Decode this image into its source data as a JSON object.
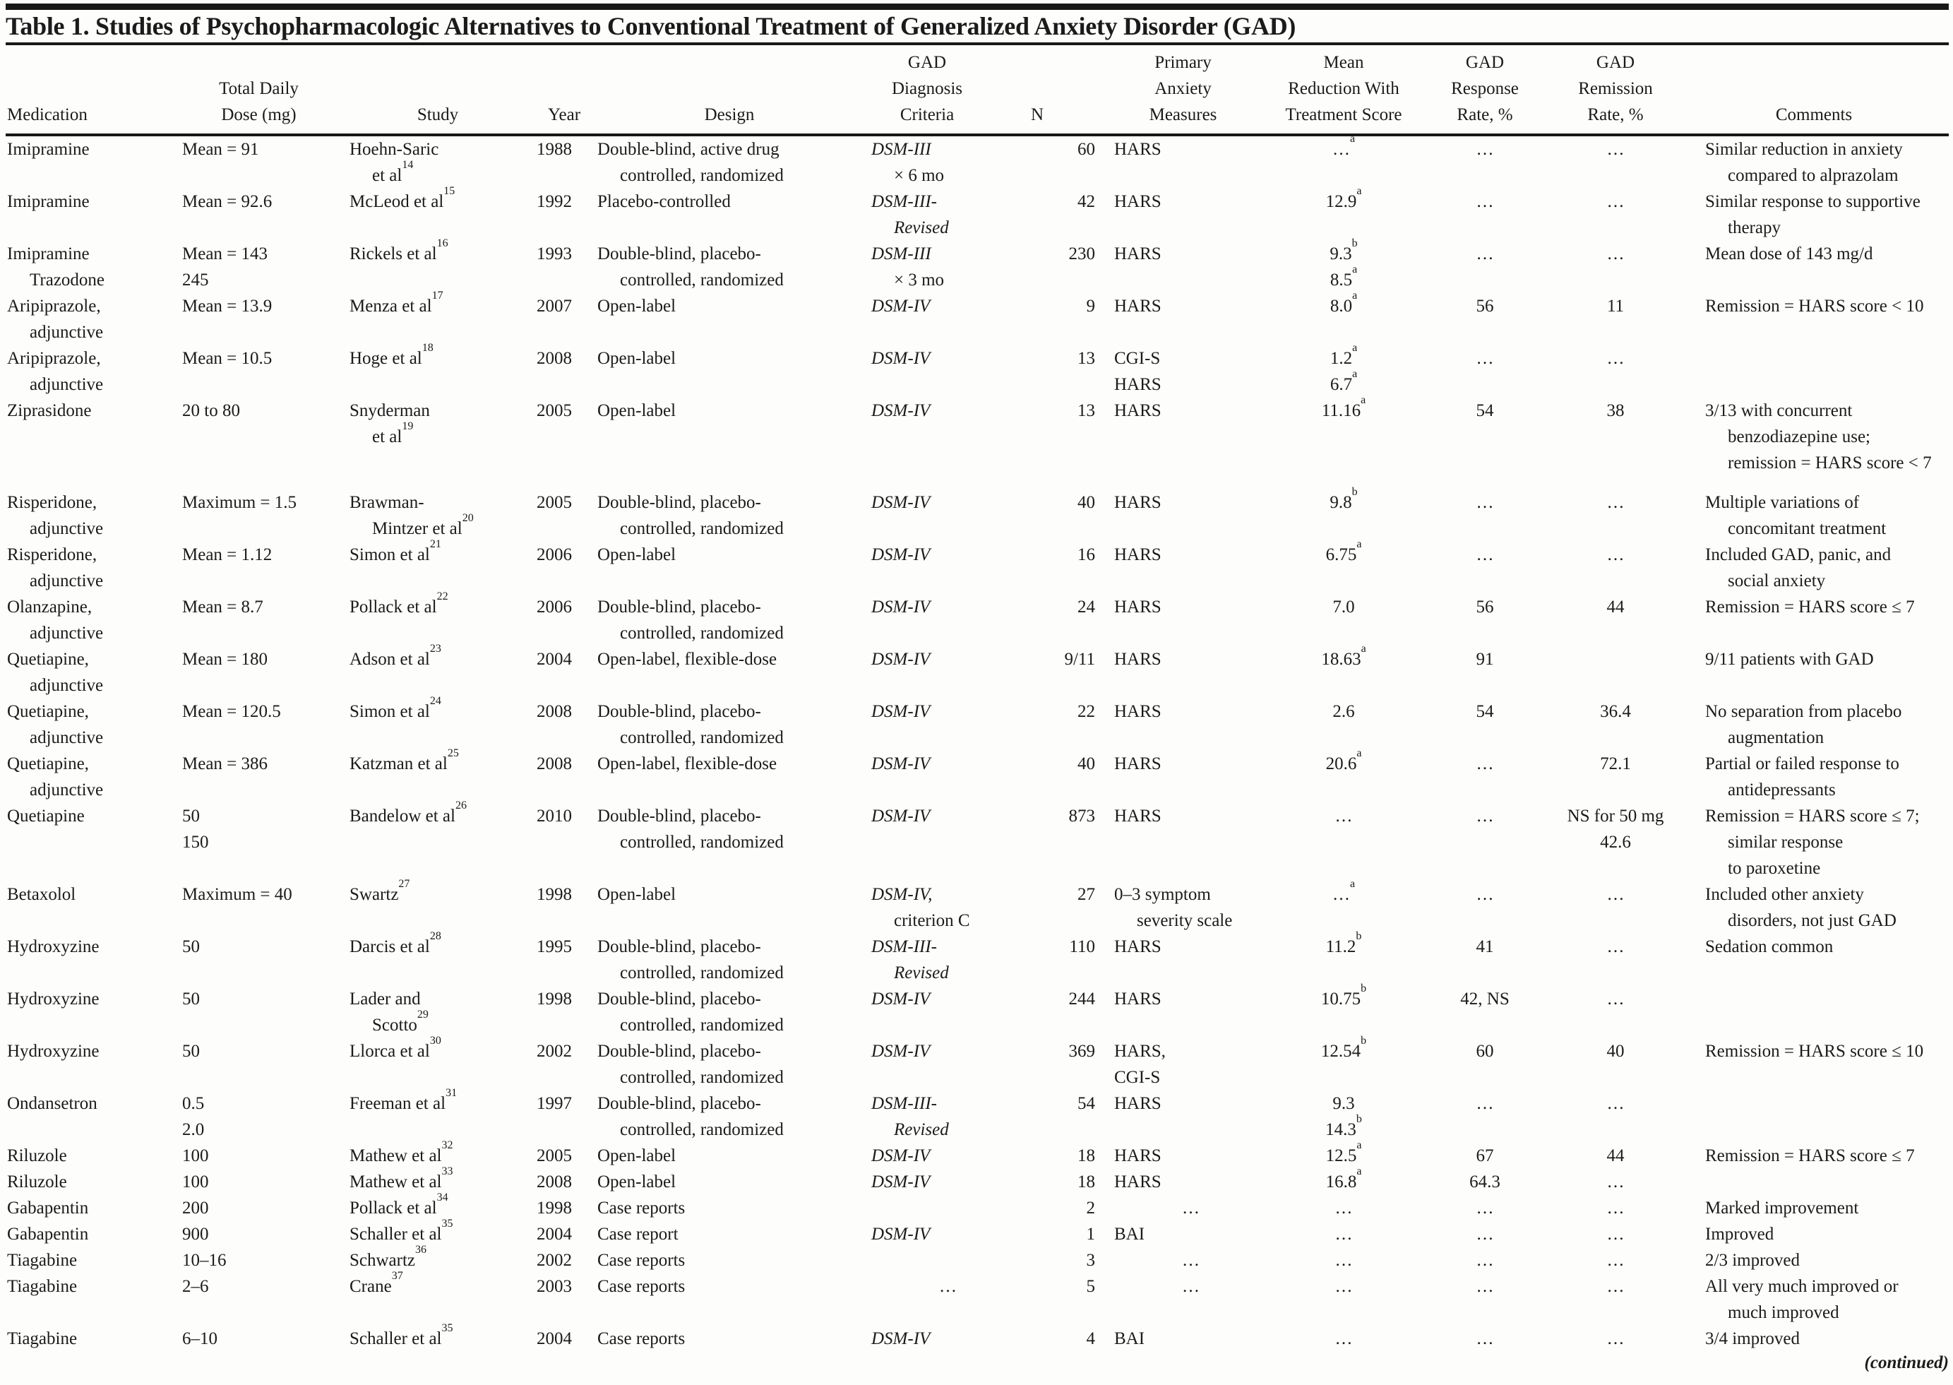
{
  "title": "Table 1. Studies of Psychopharmacologic Alternatives to Conventional Treatment of Generalized Anxiety Disorder (GAD)",
  "continued": "(continued)",
  "columns": [
    {
      "key": "medication",
      "label": [
        "Medication"
      ]
    },
    {
      "key": "dose",
      "label": [
        "Total Daily",
        "Dose (mg)"
      ]
    },
    {
      "key": "study",
      "label": [
        "Study"
      ]
    },
    {
      "key": "year",
      "label": [
        "Year"
      ]
    },
    {
      "key": "design",
      "label": [
        "Design"
      ]
    },
    {
      "key": "criteria",
      "label": [
        "GAD",
        "Diagnosis",
        "Criteria"
      ]
    },
    {
      "key": "n",
      "label": [
        "N"
      ]
    },
    {
      "key": "measures",
      "label": [
        "Primary",
        "Anxiety",
        "Measures"
      ]
    },
    {
      "key": "reduction",
      "label": [
        "Mean",
        "Reduction With",
        "Treatment Score"
      ]
    },
    {
      "key": "response",
      "label": [
        "GAD",
        "Response",
        "Rate, %"
      ]
    },
    {
      "key": "remission",
      "label": [
        "GAD",
        "Remission",
        "Rate, %"
      ]
    },
    {
      "key": "comments",
      "label": [
        "Comments"
      ]
    }
  ],
  "rows": [
    {
      "medication": [
        "Imipramine"
      ],
      "dose": [
        "Mean = 91"
      ],
      "study": [
        "Hoehn-Saric",
        ">et al^14"
      ],
      "year": [
        "1988"
      ],
      "design": [
        "Double-blind, active drug",
        ">controlled, randomized"
      ],
      "criteria": [
        "DSM-III",
        ">~× 6 mo"
      ],
      "n": [
        "60"
      ],
      "measures": [
        "HARS"
      ],
      "reduction": [
        "…^a"
      ],
      "response": [
        "…"
      ],
      "remission": [
        "…"
      ],
      "comments": [
        "Similar reduction in anxiety",
        ">compared to alprazolam"
      ]
    },
    {
      "medication": [
        "Imipramine"
      ],
      "dose": [
        "Mean = 92.6"
      ],
      "study": [
        "McLeod et al^15"
      ],
      "year": [
        "1992"
      ],
      "design": [
        "Placebo-controlled"
      ],
      "criteria": [
        "DSM-III-",
        ">Revised"
      ],
      "n": [
        "42"
      ],
      "measures": [
        "HARS"
      ],
      "reduction": [
        "12.9^a"
      ],
      "response": [
        "…"
      ],
      "remission": [
        "…"
      ],
      "comments": [
        "Similar response to supportive",
        ">therapy"
      ]
    },
    {
      "medication": [
        "Imipramine",
        ">Trazodone"
      ],
      "dose": [
        "Mean = 143",
        "245"
      ],
      "study": [
        "Rickels et al^16"
      ],
      "year": [
        "1993"
      ],
      "design": [
        "Double-blind, placebo-",
        ">controlled, randomized"
      ],
      "criteria": [
        "DSM-III",
        ">~× 3 mo"
      ],
      "n": [
        "230"
      ],
      "measures": [
        "HARS"
      ],
      "reduction": [
        "9.3^b",
        "8.5^a"
      ],
      "response": [
        "…"
      ],
      "remission": [
        "…"
      ],
      "comments": [
        "Mean dose of 143 mg/d"
      ]
    },
    {
      "medication": [
        "Aripiprazole,",
        ">adjunctive"
      ],
      "dose": [
        "Mean = 13.9"
      ],
      "study": [
        "Menza et al^17"
      ],
      "year": [
        "2007"
      ],
      "design": [
        "Open-label"
      ],
      "criteria": [
        "DSM-IV"
      ],
      "n": [
        "9"
      ],
      "measures": [
        "HARS"
      ],
      "reduction": [
        "8.0^a"
      ],
      "response": [
        "56"
      ],
      "remission": [
        "11"
      ],
      "comments": [
        "Remission = HARS score < 10"
      ]
    },
    {
      "medication": [
        "Aripiprazole,",
        ">adjunctive"
      ],
      "dose": [
        "Mean = 10.5"
      ],
      "study": [
        "Hoge et al^18"
      ],
      "year": [
        "2008"
      ],
      "design": [
        "Open-label"
      ],
      "criteria": [
        "DSM-IV"
      ],
      "n": [
        "13"
      ],
      "measures": [
        "CGI-S",
        "HARS"
      ],
      "reduction": [
        "1.2^a",
        "6.7^a"
      ],
      "response": [
        "…"
      ],
      "remission": [
        "…"
      ],
      "comments": []
    },
    {
      "medication": [
        "Ziprasidone"
      ],
      "dose": [
        "20 to 80"
      ],
      "study": [
        "Snyderman",
        ">et al^19"
      ],
      "year": [
        "2005"
      ],
      "design": [
        "Open-label"
      ],
      "criteria": [
        "DSM-IV"
      ],
      "n": [
        "13"
      ],
      "measures": [
        "HARS"
      ],
      "reduction": [
        "11.16^a"
      ],
      "response": [
        "54"
      ],
      "remission": [
        "38"
      ],
      "comments": [
        "3/13 with concurrent",
        ">benzodiazepine use;",
        ">remission = HARS score < 7"
      ],
      "gap_after": true
    },
    {
      "medication": [
        "Risperidone,",
        ">adjunctive"
      ],
      "dose": [
        "Maximum = 1.5"
      ],
      "study": [
        "Brawman-",
        ">Mintzer et al^20"
      ],
      "year": [
        "2005"
      ],
      "design": [
        "Double-blind, placebo-",
        ">controlled, randomized"
      ],
      "criteria": [
        "DSM-IV"
      ],
      "n": [
        "40"
      ],
      "measures": [
        "HARS"
      ],
      "reduction": [
        "9.8^b"
      ],
      "response": [
        "…"
      ],
      "remission": [
        "…"
      ],
      "comments": [
        "Multiple variations of",
        ">concomitant treatment"
      ]
    },
    {
      "medication": [
        "Risperidone,",
        ">adjunctive"
      ],
      "dose": [
        "Mean = 1.12"
      ],
      "study": [
        "Simon et al^21"
      ],
      "year": [
        "2006"
      ],
      "design": [
        "Open-label"
      ],
      "criteria": [
        "DSM-IV"
      ],
      "n": [
        "16"
      ],
      "measures": [
        "HARS"
      ],
      "reduction": [
        "6.75^a"
      ],
      "response": [
        "…"
      ],
      "remission": [
        "…"
      ],
      "comments": [
        "Included GAD, panic, and",
        ">social anxiety"
      ]
    },
    {
      "medication": [
        "Olanzapine,",
        ">adjunctive"
      ],
      "dose": [
        "Mean = 8.7"
      ],
      "study": [
        "Pollack et al^22"
      ],
      "year": [
        "2006"
      ],
      "design": [
        "Double-blind, placebo-",
        ">controlled, randomized"
      ],
      "criteria": [
        "DSM-IV"
      ],
      "n": [
        "24"
      ],
      "measures": [
        "HARS"
      ],
      "reduction": [
        "7.0"
      ],
      "response": [
        "56"
      ],
      "remission": [
        "44"
      ],
      "comments": [
        "Remission = HARS score ≤ 7"
      ]
    },
    {
      "medication": [
        "Quetiapine,",
        ">adjunctive"
      ],
      "dose": [
        "Mean = 180"
      ],
      "study": [
        "Adson et al^23"
      ],
      "year": [
        "2004"
      ],
      "design": [
        "Open-label, flexible-dose"
      ],
      "criteria": [
        "DSM-IV"
      ],
      "n": [
        "9/11"
      ],
      "measures": [
        "HARS"
      ],
      "reduction": [
        "18.63^a"
      ],
      "response": [
        "91"
      ],
      "remission": [],
      "comments": [
        "9/11 patients with GAD"
      ]
    },
    {
      "medication": [
        "Quetiapine,",
        ">adjunctive"
      ],
      "dose": [
        "Mean = 120.5"
      ],
      "study": [
        "Simon et al^24"
      ],
      "year": [
        "2008"
      ],
      "design": [
        "Double-blind, placebo-",
        ">controlled, randomized"
      ],
      "criteria": [
        "DSM-IV"
      ],
      "n": [
        "22"
      ],
      "measures": [
        "HARS"
      ],
      "reduction": [
        "2.6"
      ],
      "response": [
        "54"
      ],
      "remission": [
        "36.4"
      ],
      "comments": [
        "No separation from placebo",
        ">augmentation"
      ]
    },
    {
      "medication": [
        "Quetiapine,",
        ">adjunctive"
      ],
      "dose": [
        "Mean = 386"
      ],
      "study": [
        "Katzman et al^25"
      ],
      "year": [
        "2008"
      ],
      "design": [
        "Open-label, flexible-dose"
      ],
      "criteria": [
        "DSM-IV"
      ],
      "n": [
        "40"
      ],
      "measures": [
        "HARS"
      ],
      "reduction": [
        "20.6^a"
      ],
      "response": [
        "…"
      ],
      "remission": [
        "72.1"
      ],
      "comments": [
        "Partial or failed response to",
        ">antidepressants"
      ]
    },
    {
      "medication": [
        "Quetiapine"
      ],
      "dose": [
        "50",
        "150"
      ],
      "study": [
        "Bandelow et al^26"
      ],
      "year": [
        "2010"
      ],
      "design": [
        "Double-blind, placebo-",
        ">controlled, randomized"
      ],
      "criteria": [
        "DSM-IV"
      ],
      "n": [
        "873"
      ],
      "measures": [
        "HARS"
      ],
      "reduction": [
        "…"
      ],
      "response": [
        "…"
      ],
      "remission": [
        "NS for 50 mg",
        "42.6"
      ],
      "comments": [
        "Remission = HARS score ≤ 7;",
        ">similar response",
        ">to paroxetine"
      ]
    },
    {
      "medication": [
        "Betaxolol"
      ],
      "dose": [
        "Maximum = 40"
      ],
      "study": [
        "Swartz^27"
      ],
      "year": [
        "1998"
      ],
      "design": [
        "Open-label"
      ],
      "criteria": [
        "DSM-IV,",
        ">~criterion C"
      ],
      "n": [
        "27"
      ],
      "measures": [
        "0–3 symptom",
        ">severity scale"
      ],
      "reduction": [
        "…^a"
      ],
      "response": [
        "…"
      ],
      "remission": [
        "…"
      ],
      "comments": [
        "Included other anxiety",
        ">disorders, not just GAD"
      ]
    },
    {
      "medication": [
        "Hydroxyzine"
      ],
      "dose": [
        "50"
      ],
      "study": [
        "Darcis et al^28"
      ],
      "year": [
        "1995"
      ],
      "design": [
        "Double-blind, placebo-",
        ">controlled, randomized"
      ],
      "criteria": [
        "DSM-III-",
        ">Revised"
      ],
      "n": [
        "110"
      ],
      "measures": [
        "HARS"
      ],
      "reduction": [
        "11.2^b"
      ],
      "response": [
        "41"
      ],
      "remission": [
        "…"
      ],
      "comments": [
        "Sedation common"
      ]
    },
    {
      "medication": [
        "Hydroxyzine"
      ],
      "dose": [
        "50"
      ],
      "study": [
        "Lader and",
        ">Scotto^29"
      ],
      "year": [
        "1998"
      ],
      "design": [
        "Double-blind, placebo-",
        ">controlled, randomized"
      ],
      "criteria": [
        "DSM-IV"
      ],
      "n": [
        "244"
      ],
      "measures": [
        "HARS"
      ],
      "reduction": [
        "10.75^b"
      ],
      "response": [
        "42, NS"
      ],
      "remission": [
        "…"
      ],
      "comments": []
    },
    {
      "medication": [
        "Hydroxyzine"
      ],
      "dose": [
        "50"
      ],
      "study": [
        "Llorca et al^30"
      ],
      "year": [
        "2002"
      ],
      "design": [
        "Double-blind, placebo-",
        ">controlled, randomized"
      ],
      "criteria": [
        "DSM-IV"
      ],
      "n": [
        "369"
      ],
      "measures": [
        "HARS,",
        "CGI-S"
      ],
      "reduction": [
        "12.54^b"
      ],
      "response": [
        "60"
      ],
      "remission": [
        "40"
      ],
      "comments": [
        "Remission = HARS score ≤ 10"
      ]
    },
    {
      "medication": [
        "Ondansetron"
      ],
      "dose": [
        "0.5",
        "2.0"
      ],
      "study": [
        "Freeman et al^31"
      ],
      "year": [
        "1997"
      ],
      "design": [
        "Double-blind, placebo-",
        ">controlled, randomized"
      ],
      "criteria": [
        "DSM-III-",
        ">Revised"
      ],
      "n": [
        "54"
      ],
      "measures": [
        "HARS"
      ],
      "reduction": [
        "9.3",
        "14.3^b"
      ],
      "response": [
        "…"
      ],
      "remission": [
        "…"
      ],
      "comments": []
    },
    {
      "medication": [
        "Riluzole"
      ],
      "dose": [
        "100"
      ],
      "study": [
        "Mathew et al^32"
      ],
      "year": [
        "2005"
      ],
      "design": [
        "Open-label"
      ],
      "criteria": [
        "DSM-IV"
      ],
      "n": [
        "18"
      ],
      "measures": [
        "HARS"
      ],
      "reduction": [
        "12.5^a"
      ],
      "response": [
        "67"
      ],
      "remission": [
        "44"
      ],
      "comments": [
        "Remission = HARS score ≤ 7"
      ]
    },
    {
      "medication": [
        "Riluzole"
      ],
      "dose": [
        "100"
      ],
      "study": [
        "Mathew et al^33"
      ],
      "year": [
        "2008"
      ],
      "design": [
        "Open-label"
      ],
      "criteria": [
        "DSM-IV"
      ],
      "n": [
        "18"
      ],
      "measures": [
        "HARS"
      ],
      "reduction": [
        "16.8^a"
      ],
      "response": [
        "64.3"
      ],
      "remission": [
        "…"
      ],
      "comments": []
    },
    {
      "medication": [
        "Gabapentin"
      ],
      "dose": [
        "200"
      ],
      "study": [
        "Pollack et al^34"
      ],
      "year": [
        "1998"
      ],
      "design": [
        "Case reports"
      ],
      "criteria": [],
      "n": [
        "2"
      ],
      "measures": [
        ">>>…"
      ],
      "reduction": [
        "…"
      ],
      "response": [
        "…"
      ],
      "remission": [
        "…"
      ],
      "comments": [
        "Marked improvement"
      ]
    },
    {
      "medication": [
        "Gabapentin"
      ],
      "dose": [
        "900"
      ],
      "study": [
        "Schaller et al^35"
      ],
      "year": [
        "2004"
      ],
      "design": [
        "Case report"
      ],
      "criteria": [
        "DSM-IV"
      ],
      "n": [
        "1"
      ],
      "measures": [
        "BAI"
      ],
      "reduction": [
        "…"
      ],
      "response": [
        "…"
      ],
      "remission": [
        "…"
      ],
      "comments": [
        "Improved"
      ]
    },
    {
      "medication": [
        "Tiagabine"
      ],
      "dose": [
        "10–16"
      ],
      "study": [
        "Schwartz^36"
      ],
      "year": [
        "2002"
      ],
      "design": [
        "Case reports"
      ],
      "criteria": [],
      "n": [
        "3"
      ],
      "measures": [
        ">>>…"
      ],
      "reduction": [
        "…"
      ],
      "response": [
        "…"
      ],
      "remission": [
        "…"
      ],
      "comments": [
        "2/3 improved"
      ]
    },
    {
      "medication": [
        "Tiagabine"
      ],
      "dose": [
        "2–6"
      ],
      "study": [
        "Crane^37"
      ],
      "year": [
        "2003"
      ],
      "design": [
        "Case reports"
      ],
      "criteria": [
        ">>>~…"
      ],
      "n": [
        "5"
      ],
      "measures": [
        ">>>…"
      ],
      "reduction": [
        "…"
      ],
      "response": [
        "…"
      ],
      "remission": [
        "…"
      ],
      "comments": [
        "All very much improved or",
        ">much improved"
      ]
    },
    {
      "medication": [
        "Tiagabine"
      ],
      "dose": [
        "6–10"
      ],
      "study": [
        "Schaller et al^35"
      ],
      "year": [
        "2004"
      ],
      "design": [
        "Case reports"
      ],
      "criteria": [
        "DSM-IV"
      ],
      "n": [
        "4"
      ],
      "measures": [
        "BAI"
      ],
      "reduction": [
        "…"
      ],
      "response": [
        "…"
      ],
      "remission": [
        "…"
      ],
      "comments": [
        "3/4 improved"
      ]
    }
  ]
}
